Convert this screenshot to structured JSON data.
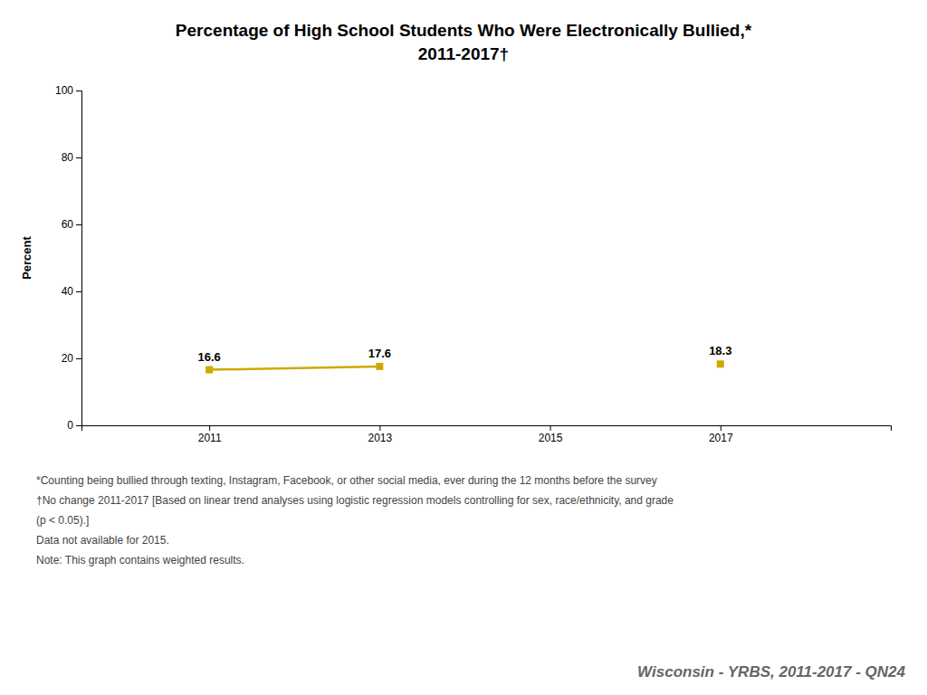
{
  "chart_data": {
    "type": "line",
    "title": "Percentage of High School Students Who Were Electronically Bullied,*",
    "subtitle": "2011-2017†",
    "y_label": "Percent",
    "x": [
      2011,
      2013,
      2015,
      2017
    ],
    "values": [
      16.6,
      17.6,
      null,
      18.3
    ],
    "color": "#ccaa00",
    "marker": "square",
    "data_labels": true,
    "grid": false,
    "xlim": [
      2009.5,
      2019.0
    ],
    "xticks": [
      2011,
      2013,
      2015,
      2017
    ],
    "ylim": [
      0,
      100
    ],
    "yticks": [
      0,
      20,
      40,
      60,
      80,
      100
    ],
    "footnotes": [
      "*Counting being bullied through texting, Instagram, Facebook, or other social media, ever during the 12 months before the survey",
      "†No change 2011-2017 [Based on linear trend analyses using logistic regression models controlling for sex, race/ethnicity, and grade",
      "(p < 0.05).]",
      "Data not available for 2015.",
      "Note: This graph contains weighted results."
    ],
    "source": "Wisconsin - YRBS, 2011-2017 - QN24"
  }
}
